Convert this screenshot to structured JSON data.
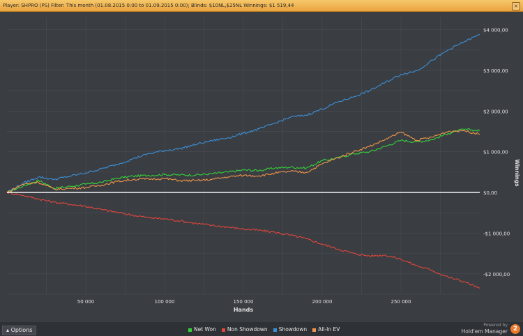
{
  "header": {
    "text": "Player: SHPRO (PS)  Filter:  This month (01.08.2015 0:00 to 01.09.2015 0:00); Blinds: $10NL,$25NL  Winnings: $1 519,44"
  },
  "footer": {
    "options_label": "Options",
    "powered_by": "Powered by",
    "brand_name": "Hold'em Manager",
    "brand_badge": "2"
  },
  "colors": {
    "background": "#3a3d42",
    "grid": "#4a4e55",
    "zero_line": "#ffffff",
    "net_won": "#35d33a",
    "non_showdown": "#e0463c",
    "showdown": "#3c8fd6",
    "all_in_ev": "#f0964a"
  },
  "chart_data": {
    "type": "line",
    "title": "",
    "xlabel": "Hands",
    "ylabel": "Winnings",
    "xlim": [
      0,
      300000
    ],
    "ylim": [
      -2500,
      4300
    ],
    "grid": true,
    "legend_position": "bottom-center",
    "x_ticks": [
      50000,
      100000,
      150000,
      200000,
      250000
    ],
    "x_tick_labels": [
      "50 000",
      "100 000",
      "150 000",
      "200 000",
      "250 000"
    ],
    "y_ticks": [
      4000,
      3000,
      2000,
      1000,
      0,
      -1000,
      -2000
    ],
    "y_tick_labels": [
      "$4 000,00",
      "$3 000,00",
      "$2 000,00",
      "$1 000,00",
      "$0,00",
      "-$1 000,00",
      "-$2 000,00"
    ],
    "x": [
      0,
      10000,
      20000,
      30000,
      40000,
      50000,
      60000,
      70000,
      80000,
      90000,
      100000,
      110000,
      120000,
      130000,
      140000,
      150000,
      160000,
      170000,
      180000,
      190000,
      200000,
      210000,
      220000,
      230000,
      240000,
      250000,
      260000,
      270000,
      280000,
      290000,
      300000
    ],
    "series": [
      {
        "name": "Net Won",
        "color_key": "net_won",
        "values": [
          0,
          150,
          300,
          100,
          150,
          200,
          250,
          350,
          400,
          420,
          440,
          430,
          430,
          460,
          500,
          550,
          540,
          600,
          620,
          600,
          780,
          850,
          950,
          1000,
          1130,
          1280,
          1240,
          1300,
          1450,
          1550,
          1520
        ]
      },
      {
        "name": "Non Showdown",
        "color_key": "non_showdown",
        "values": [
          0,
          -70,
          -160,
          -240,
          -290,
          -340,
          -420,
          -490,
          -560,
          -620,
          -650,
          -700,
          -760,
          -810,
          -850,
          -900,
          -930,
          -980,
          -1050,
          -1140,
          -1270,
          -1390,
          -1500,
          -1560,
          -1540,
          -1640,
          -1800,
          -1920,
          -2080,
          -2190,
          -2360
        ]
      },
      {
        "name": "Showdown",
        "color_key": "showdown",
        "values": [
          0,
          220,
          380,
          320,
          400,
          480,
          580,
          690,
          830,
          950,
          1030,
          1080,
          1180,
          1270,
          1340,
          1450,
          1560,
          1700,
          1850,
          1900,
          2050,
          2220,
          2350,
          2500,
          2700,
          2900,
          2990,
          3250,
          3500,
          3700,
          3880
        ]
      },
      {
        "name": "All-In EV",
        "color_key": "all_in_ev",
        "values": [
          0,
          200,
          250,
          80,
          100,
          120,
          180,
          270,
          320,
          330,
          340,
          290,
          290,
          320,
          380,
          420,
          410,
          470,
          520,
          490,
          700,
          850,
          1000,
          1130,
          1300,
          1480,
          1280,
          1360,
          1500,
          1520,
          1430
        ]
      }
    ]
  }
}
